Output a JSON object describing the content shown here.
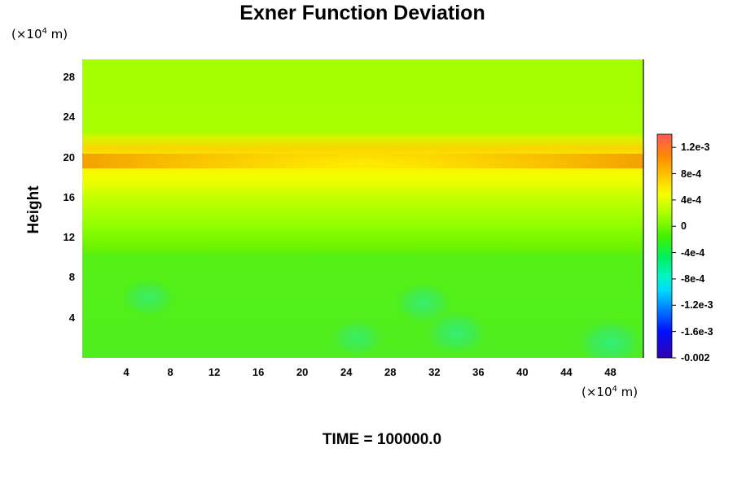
{
  "chart_data": {
    "type": "heatmap",
    "title": "Exner Function Deviation",
    "ylabel": "Height",
    "y_unit": "(×10⁴ m)",
    "x_unit": "(×10⁴ m)",
    "xlim": [
      0,
      51
    ],
    "ylim": [
      0,
      29.8
    ],
    "x_ticks": [
      "4",
      "8",
      "12",
      "16",
      "20",
      "24",
      "28",
      "32",
      "36",
      "40",
      "44",
      "48"
    ],
    "y_ticks": [
      "4",
      "8",
      "12",
      "16",
      "20",
      "24",
      "28"
    ],
    "colorbar": {
      "range": [
        -0.002,
        0.0014
      ],
      "tick_labels": [
        "1.2e-3",
        "8e-4",
        "4e-4",
        "0",
        "-4e-4",
        "-8e-4",
        "-1.2e-3",
        "-1.6e-3",
        "-0.002"
      ],
      "tick_values": [
        0.0012,
        0.0008,
        0.0004,
        0,
        -0.0004,
        -0.0008,
        -0.0012,
        -0.0016,
        -0.002
      ]
    },
    "field_summary": {
      "upper_layer_above_22": 0.0,
      "peak_band_height": 19.6,
      "peak_band_value_edges": 0.0009,
      "peak_band_value_center": 0.0006,
      "mid_layer_12_to_18": 0.0002,
      "lower_layer_below_12": -0.0003,
      "lower_minima": [
        {
          "x": 6,
          "y": 6,
          "value": -0.0005
        },
        {
          "x": 25,
          "y": 2,
          "value": -0.0005
        },
        {
          "x": 31,
          "y": 5.5,
          "value": -0.0006
        },
        {
          "x": 34,
          "y": 2.5,
          "value": -0.0007
        },
        {
          "x": 48,
          "y": 1.5,
          "value": -0.0008
        }
      ]
    }
  },
  "time_label": "TIME = 100000.0"
}
